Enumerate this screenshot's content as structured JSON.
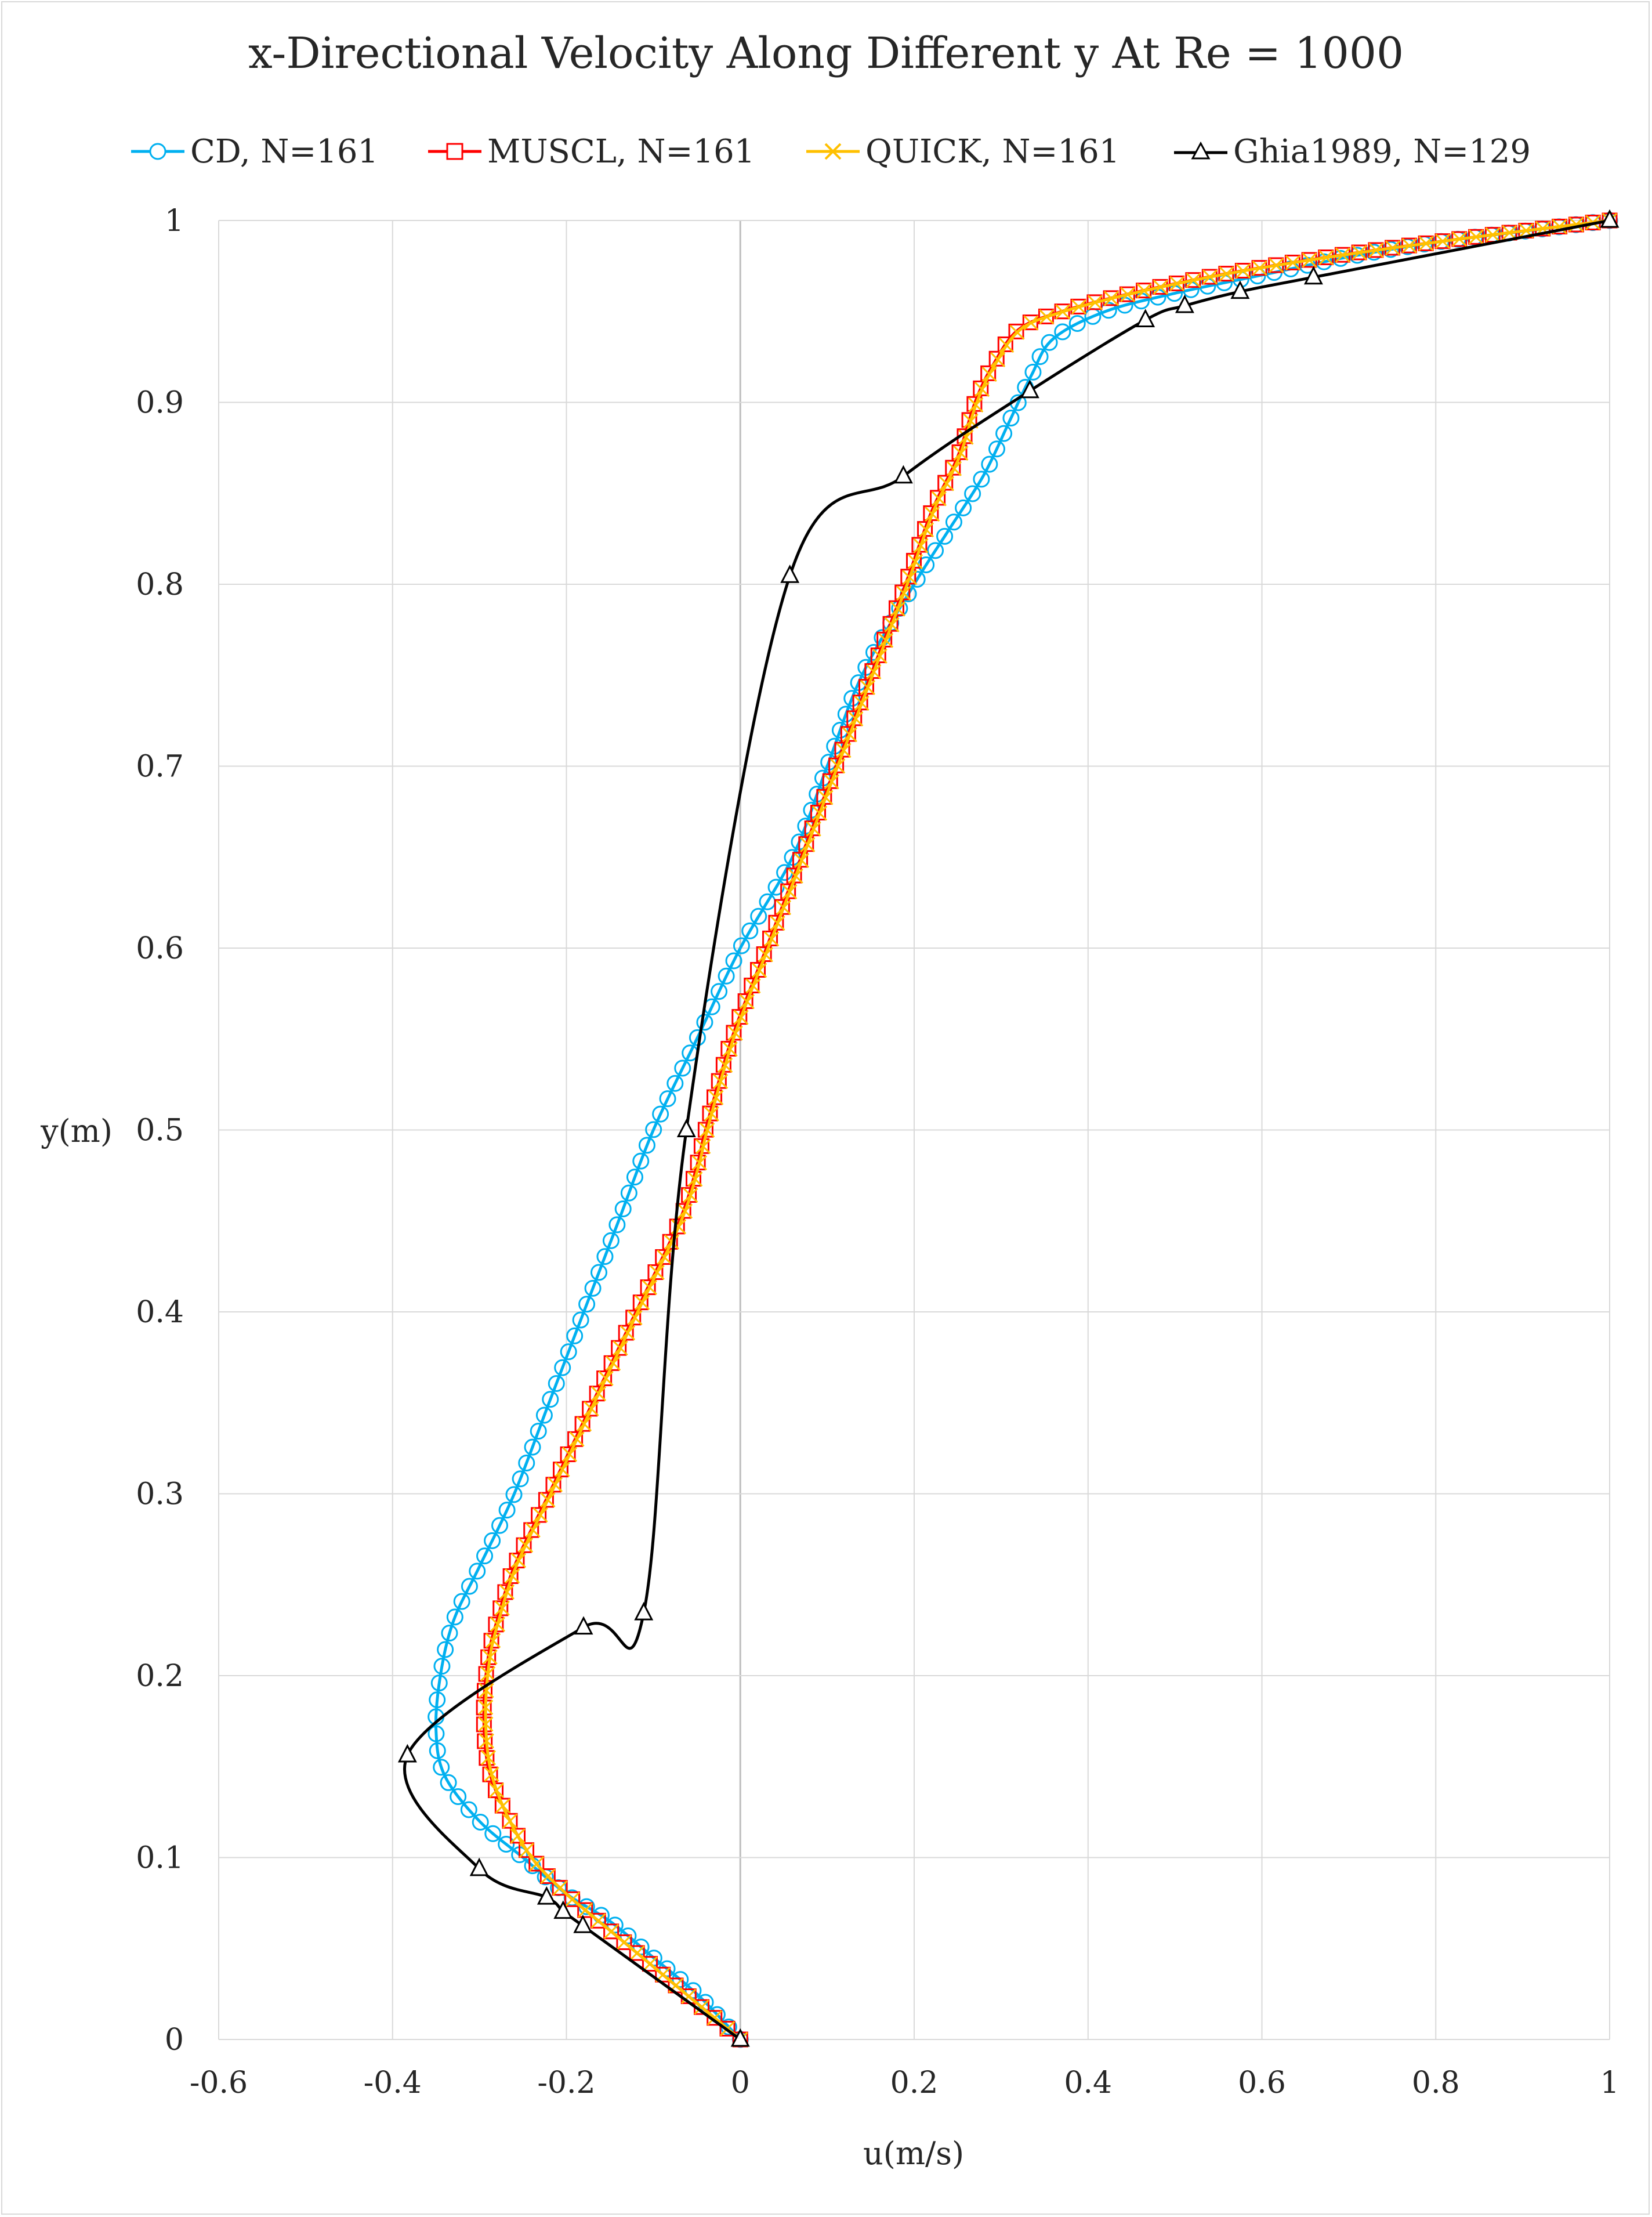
{
  "chart_data": {
    "type": "line",
    "title": "x-Directional Velocity Along Different y At Re = 1000",
    "xlabel": "u(m/s)",
    "ylabel": "y(m)",
    "xlim": [
      -0.6,
      1
    ],
    "ylim": [
      0,
      1
    ],
    "x_ticks": [
      "-0.6",
      "-0.4",
      "-0.2",
      "0",
      "0.2",
      "0.4",
      "0.6",
      "0.8",
      "1"
    ],
    "y_ticks": [
      "0",
      "0.1",
      "0.2",
      "0.3",
      "0.4",
      "0.5",
      "0.6",
      "0.7",
      "0.8",
      "0.9",
      "1"
    ],
    "grid": true,
    "legend_position": "top",
    "series": [
      {
        "name": "CD, N=161",
        "color": "#00b0f0",
        "marker": "circle",
        "curve": [
          [
            0,
            0
          ],
          [
            -0.05,
            0.025
          ],
          [
            -0.1,
            0.045
          ],
          [
            -0.15,
            0.065
          ],
          [
            -0.2,
            0.08
          ],
          [
            -0.25,
            0.1
          ],
          [
            -0.3,
            0.12
          ],
          [
            -0.34,
            0.145
          ],
          [
            -0.35,
            0.17
          ],
          [
            -0.345,
            0.2
          ],
          [
            -0.33,
            0.23
          ],
          [
            -0.3,
            0.26
          ],
          [
            -0.26,
            0.3
          ],
          [
            -0.22,
            0.35
          ],
          [
            -0.18,
            0.4
          ],
          [
            -0.14,
            0.45
          ],
          [
            -0.1,
            0.5
          ],
          [
            -0.05,
            0.55
          ],
          [
            0,
            0.6
          ],
          [
            0.06,
            0.65
          ],
          [
            0.1,
            0.7
          ],
          [
            0.14,
            0.75
          ],
          [
            0.2,
            0.8
          ],
          [
            0.24,
            0.83
          ],
          [
            0.28,
            0.86
          ],
          [
            0.31,
            0.89
          ],
          [
            0.335,
            0.915
          ],
          [
            0.36,
            0.935
          ],
          [
            0.42,
            0.95
          ],
          [
            0.5,
            0.96
          ],
          [
            0.6,
            0.97
          ],
          [
            0.7,
            0.98
          ],
          [
            0.8,
            0.988
          ],
          [
            0.9,
            0.994
          ],
          [
            1,
            1
          ]
        ]
      },
      {
        "name": "MUSCL, N=161",
        "color": "#ff0000",
        "marker": "square",
        "curve": [
          [
            0,
            0
          ],
          [
            -0.05,
            0.02
          ],
          [
            -0.1,
            0.04
          ],
          [
            -0.15,
            0.06
          ],
          [
            -0.2,
            0.08
          ],
          [
            -0.24,
            0.1
          ],
          [
            -0.27,
            0.125
          ],
          [
            -0.29,
            0.15
          ],
          [
            -0.295,
            0.18
          ],
          [
            -0.29,
            0.21
          ],
          [
            -0.28,
            0.23
          ],
          [
            -0.26,
            0.26
          ],
          [
            -0.22,
            0.3
          ],
          [
            -0.17,
            0.35
          ],
          [
            -0.12,
            0.4
          ],
          [
            -0.07,
            0.45
          ],
          [
            -0.05,
            0.48
          ],
          [
            -0.04,
            0.5
          ],
          [
            -0.01,
            0.55
          ],
          [
            0.03,
            0.6
          ],
          [
            0.07,
            0.65
          ],
          [
            0.11,
            0.7
          ],
          [
            0.15,
            0.75
          ],
          [
            0.19,
            0.8
          ],
          [
            0.22,
            0.84
          ],
          [
            0.25,
            0.87
          ],
          [
            0.27,
            0.9
          ],
          [
            0.29,
            0.92
          ],
          [
            0.32,
            0.94
          ],
          [
            0.37,
            0.95
          ],
          [
            0.45,
            0.96
          ],
          [
            0.55,
            0.97
          ],
          [
            0.65,
            0.978
          ],
          [
            0.75,
            0.985
          ],
          [
            0.88,
            0.993
          ],
          [
            1,
            1
          ]
        ]
      },
      {
        "name": "QUICK, N=161",
        "color": "#ffc000",
        "marker": "x",
        "curve": [
          [
            0,
            0
          ],
          [
            -0.05,
            0.02
          ],
          [
            -0.1,
            0.04
          ],
          [
            -0.15,
            0.06
          ],
          [
            -0.2,
            0.08
          ],
          [
            -0.24,
            0.1
          ],
          [
            -0.27,
            0.125
          ],
          [
            -0.288,
            0.15
          ],
          [
            -0.293,
            0.18
          ],
          [
            -0.288,
            0.21
          ],
          [
            -0.278,
            0.23
          ],
          [
            -0.258,
            0.26
          ],
          [
            -0.218,
            0.3
          ],
          [
            -0.168,
            0.35
          ],
          [
            -0.118,
            0.4
          ],
          [
            -0.068,
            0.45
          ],
          [
            -0.048,
            0.48
          ],
          [
            -0.038,
            0.5
          ],
          [
            -0.008,
            0.55
          ],
          [
            0.032,
            0.6
          ],
          [
            0.072,
            0.65
          ],
          [
            0.112,
            0.7
          ],
          [
            0.152,
            0.75
          ],
          [
            0.192,
            0.8
          ],
          [
            0.222,
            0.84
          ],
          [
            0.252,
            0.87
          ],
          [
            0.272,
            0.9
          ],
          [
            0.292,
            0.92
          ],
          [
            0.322,
            0.94
          ],
          [
            0.372,
            0.95
          ],
          [
            0.452,
            0.96
          ],
          [
            0.552,
            0.97
          ],
          [
            0.652,
            0.978
          ],
          [
            0.752,
            0.985
          ],
          [
            0.88,
            0.993
          ],
          [
            1,
            1
          ]
        ]
      },
      {
        "name": "Ghia1989, N=129",
        "color": "#000000",
        "marker": "triangle",
        "points": [
          [
            0,
            0
          ],
          [
            -0.1811,
            0.0625
          ],
          [
            -0.2038,
            0.0703
          ],
          [
            -0.2228,
            0.0781
          ],
          [
            -0.3003,
            0.0938
          ],
          [
            -0.3829,
            0.1563
          ],
          [
            -0.1803,
            0.2266
          ],
          [
            -0.1111,
            0.2344
          ],
          [
            -0.062,
            0.5
          ],
          [
            0.057,
            0.8047
          ],
          [
            0.1876,
            0.8594
          ],
          [
            0.333,
            0.9063
          ],
          [
            0.466,
            0.9453
          ],
          [
            0.5112,
            0.9531
          ],
          [
            0.5749,
            0.9609
          ],
          [
            0.6593,
            0.9688
          ],
          [
            1,
            1
          ]
        ]
      }
    ]
  }
}
